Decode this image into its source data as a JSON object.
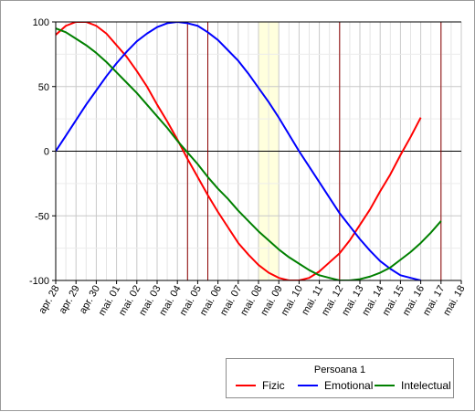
{
  "chart_data": {
    "type": "line",
    "title": "",
    "xlabel": "",
    "ylabel": "",
    "ylim": [
      -100,
      100
    ],
    "yticks": [
      100,
      50,
      0,
      -50,
      -100
    ],
    "categories": [
      "apr. 28",
      "apr. 29",
      "apr. 30",
      "mai. 01",
      "mai. 02",
      "mai. 03",
      "mai. 04",
      "mai. 05",
      "mai. 06",
      "mai. 07",
      "mai. 08",
      "mai. 09",
      "mai. 10",
      "mai. 11",
      "mai. 12",
      "mai. 13",
      "mai. 14",
      "mai. 15",
      "mai. 16",
      "mai. 17",
      "mai. 18"
    ],
    "series": [
      {
        "name": "Fizic",
        "color": "#ff0000",
        "points": [
          [
            0,
            90
          ],
          [
            0.5,
            97
          ],
          [
            1,
            100
          ],
          [
            1.5,
            100
          ],
          [
            2,
            97
          ],
          [
            2.5,
            91
          ],
          [
            3,
            82
          ],
          [
            3.5,
            73
          ],
          [
            4,
            62
          ],
          [
            4.5,
            50
          ],
          [
            5,
            36
          ],
          [
            5.5,
            23
          ],
          [
            6,
            9
          ],
          [
            6.5,
            -6
          ],
          [
            7,
            -20
          ],
          [
            7.5,
            -34
          ],
          [
            8,
            -47
          ],
          [
            8.5,
            -59
          ],
          [
            9,
            -71
          ],
          [
            9.5,
            -80
          ],
          [
            10,
            -88
          ],
          [
            10.5,
            -94
          ],
          [
            11,
            -98
          ],
          [
            11.5,
            -100
          ],
          [
            12,
            -100
          ],
          [
            12.5,
            -98
          ],
          [
            13,
            -93
          ],
          [
            13.5,
            -86
          ],
          [
            14,
            -79
          ],
          [
            14.5,
            -69
          ],
          [
            15,
            -57
          ],
          [
            15.5,
            -45
          ],
          [
            16,
            -31
          ],
          [
            16.5,
            -18
          ],
          [
            17,
            -3
          ],
          [
            17.5,
            11
          ],
          [
            18,
            26
          ]
        ]
      },
      {
        "name": "Emotional",
        "color": "#0000ff",
        "points": [
          [
            0,
            0
          ],
          [
            0.5,
            12
          ],
          [
            1,
            24
          ],
          [
            1.5,
            36
          ],
          [
            2,
            47
          ],
          [
            2.5,
            58
          ],
          [
            3,
            68
          ],
          [
            3.5,
            77
          ],
          [
            4,
            85
          ],
          [
            4.5,
            91
          ],
          [
            5,
            96
          ],
          [
            5.5,
            99
          ],
          [
            6,
            100
          ],
          [
            6.5,
            99
          ],
          [
            7,
            97
          ],
          [
            7.5,
            92
          ],
          [
            8,
            86
          ],
          [
            8.5,
            78
          ],
          [
            9,
            70
          ],
          [
            9.5,
            60
          ],
          [
            10,
            49
          ],
          [
            10.5,
            38
          ],
          [
            11,
            26
          ],
          [
            11.5,
            13
          ],
          [
            12,
            0
          ],
          [
            12.5,
            -12
          ],
          [
            13,
            -24
          ],
          [
            13.5,
            -36
          ],
          [
            14,
            -48
          ],
          [
            14.5,
            -58
          ],
          [
            15,
            -68
          ],
          [
            15.5,
            -77
          ],
          [
            16,
            -85
          ],
          [
            16.5,
            -91
          ],
          [
            17,
            -96
          ],
          [
            17.5,
            -98
          ],
          [
            18,
            -100
          ]
        ]
      },
      {
        "name": "Intelectual",
        "color": "#008000",
        "points": [
          [
            0,
            95
          ],
          [
            0.5,
            92
          ],
          [
            1,
            87
          ],
          [
            1.5,
            82
          ],
          [
            2,
            76
          ],
          [
            2.5,
            69
          ],
          [
            3,
            61
          ],
          [
            3.5,
            53
          ],
          [
            4,
            45
          ],
          [
            4.5,
            36
          ],
          [
            5,
            27
          ],
          [
            5.5,
            18
          ],
          [
            6,
            8
          ],
          [
            6.5,
            -1
          ],
          [
            7,
            -10
          ],
          [
            7.5,
            -20
          ],
          [
            8,
            -29
          ],
          [
            8.5,
            -37
          ],
          [
            9,
            -46
          ],
          [
            9.5,
            -54
          ],
          [
            10,
            -62
          ],
          [
            10.5,
            -69
          ],
          [
            11,
            -76
          ],
          [
            11.5,
            -82
          ],
          [
            12,
            -87
          ],
          [
            12.5,
            -92
          ],
          [
            13,
            -96
          ],
          [
            13.5,
            -98
          ],
          [
            14,
            -100
          ],
          [
            14.5,
            -100
          ],
          [
            15,
            -99
          ],
          [
            15.5,
            -97
          ],
          [
            16,
            -94
          ],
          [
            16.5,
            -90
          ],
          [
            17,
            -84
          ],
          [
            17.5,
            -78
          ],
          [
            18,
            -71
          ],
          [
            18.5,
            -63
          ],
          [
            19,
            -54
          ]
        ]
      }
    ],
    "highlight_band": {
      "from": 10,
      "to": 11,
      "color": "#ffffdd"
    },
    "vertical_markers": {
      "x": [
        6.5,
        7.5,
        14,
        19
      ],
      "color": "#8b0000"
    },
    "grid": true,
    "legend": {
      "title": "Persoana 1",
      "placement": "bottom-right"
    }
  }
}
